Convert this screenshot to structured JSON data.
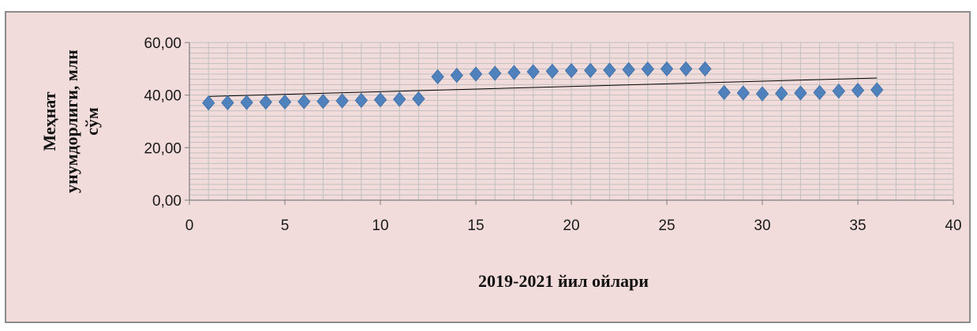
{
  "chart_data": {
    "type": "scatter",
    "xlabel": "2019-2021 йил ойлари",
    "ylabel_lines": [
      "Меҳнат",
      "унумдорлиги, млн",
      "сўм"
    ],
    "xlim": [
      0,
      40
    ],
    "ylim": [
      0,
      60
    ],
    "x_ticks": [
      0,
      5,
      10,
      15,
      20,
      25,
      30,
      35,
      40
    ],
    "x_tick_labels": [
      "0",
      "5",
      "10",
      "15",
      "20",
      "25",
      "30",
      "35",
      "40"
    ],
    "y_ticks": [
      0,
      20,
      40,
      60
    ],
    "y_tick_labels": [
      "0,00",
      "20,00",
      "40,00",
      "60,00"
    ],
    "grid": true,
    "marker": "diamond",
    "marker_color": "#4f81bd",
    "trendline": {
      "type": "linear",
      "x_start": 1,
      "y_start": 39.5,
      "x_end": 36,
      "y_end": 46.5
    },
    "x": [
      1,
      2,
      3,
      4,
      5,
      6,
      7,
      8,
      9,
      10,
      11,
      12,
      13,
      14,
      15,
      16,
      17,
      18,
      19,
      20,
      21,
      22,
      23,
      24,
      25,
      26,
      27,
      28,
      29,
      30,
      31,
      32,
      33,
      34,
      35,
      36
    ],
    "y": [
      37.0,
      37.1,
      37.2,
      37.3,
      37.4,
      37.5,
      37.6,
      37.8,
      38.0,
      38.2,
      38.4,
      38.6,
      47.0,
      47.5,
      48.0,
      48.3,
      48.6,
      48.9,
      49.1,
      49.3,
      49.4,
      49.5,
      49.7,
      49.9,
      50.0,
      50.0,
      50.0,
      41.0,
      40.8,
      40.5,
      40.6,
      40.8,
      41.0,
      41.5,
      41.8,
      42.0
    ]
  }
}
